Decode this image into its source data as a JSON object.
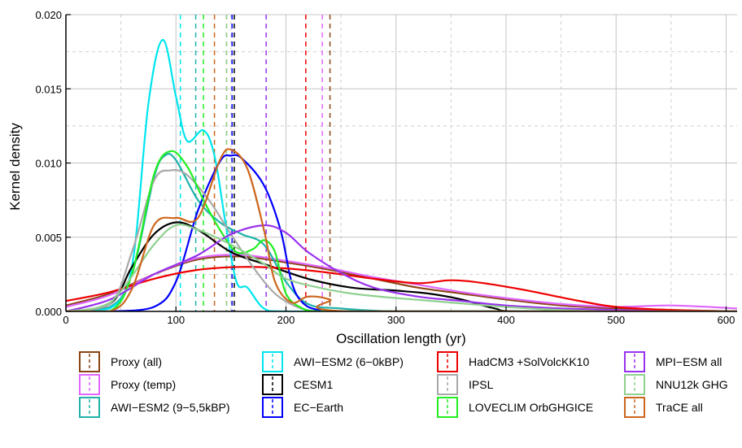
{
  "chart_data": {
    "type": "line",
    "title": "",
    "xlabel": "Oscillation length (yr)",
    "ylabel": "Kernel density",
    "xlim": [
      0,
      610
    ],
    "ylim": [
      0,
      0.02
    ],
    "x_ticks": [
      0,
      100,
      200,
      300,
      400,
      500,
      600
    ],
    "y_ticks": [
      0,
      0.005,
      0.01,
      0.015,
      0.02
    ],
    "x_tick_labels": [
      "0",
      "100",
      "200",
      "300",
      "400",
      "500",
      "600"
    ],
    "y_tick_labels": [
      "0.000",
      "0.005",
      "0.010",
      "0.015",
      "0.020"
    ],
    "grid": true,
    "legend_position": "bottom",
    "series": [
      {
        "name": "Proxy (all)",
        "color": "#8B4513",
        "mean": 240,
        "x": [
          0,
          40,
          80,
          120,
          160,
          200,
          240,
          280,
          320,
          360,
          400,
          450,
          500,
          550,
          610
        ],
        "values": [
          0.0004,
          0.0012,
          0.0025,
          0.0035,
          0.0037,
          0.0033,
          0.0028,
          0.0022,
          0.0016,
          0.0012,
          0.0008,
          0.0004,
          0.0002,
          0.0001,
          0.0
        ]
      },
      {
        "name": "Proxy (temp)",
        "color": "#E066FF",
        "mean": 233,
        "x": [
          0,
          40,
          80,
          120,
          160,
          200,
          240,
          280,
          320,
          360,
          400,
          450,
          500,
          550,
          610
        ],
        "values": [
          0.0003,
          0.0011,
          0.0025,
          0.0036,
          0.0038,
          0.0034,
          0.0029,
          0.0023,
          0.0018,
          0.0013,
          0.0009,
          0.0005,
          0.0003,
          0.0004,
          0.0002
        ]
      },
      {
        "name": "AWI−ESM2 (9−5,5kBP)",
        "color": "#20B2AA",
        "mean": 118,
        "x": [
          0,
          40,
          60,
          80,
          90,
          100,
          120,
          140,
          160,
          180,
          200,
          220,
          250,
          300,
          400,
          500,
          610
        ],
        "values": [
          0.0,
          0.0003,
          0.0025,
          0.009,
          0.0105,
          0.0102,
          0.0075,
          0.006,
          0.0052,
          0.0045,
          0.002,
          0.0005,
          0.0002,
          0.0,
          0.0,
          0.0,
          0.0
        ]
      },
      {
        "name": "AWI−ESM2 (6−0kBP)",
        "color": "#00E5EE",
        "mean": 104,
        "x": [
          0,
          40,
          60,
          75,
          88,
          100,
          110,
          125,
          135,
          145,
          155,
          165,
          180,
          200,
          300,
          610
        ],
        "values": [
          0.0,
          0.0002,
          0.003,
          0.014,
          0.0183,
          0.0145,
          0.0115,
          0.0122,
          0.0105,
          0.006,
          0.002,
          0.0016,
          0.0002,
          0.0,
          0.0,
          0.0
        ]
      },
      {
        "name": "CESM1",
        "color": "#000000",
        "mean": 153,
        "x": [
          0,
          40,
          60,
          80,
          100,
          120,
          150,
          180,
          220,
          260,
          300,
          330,
          360,
          390,
          420,
          610
        ],
        "values": [
          0.0,
          0.0005,
          0.003,
          0.0052,
          0.006,
          0.0055,
          0.004,
          0.0032,
          0.0022,
          0.0016,
          0.0014,
          0.0012,
          0.0008,
          0.0002,
          0.0,
          0.0
        ]
      },
      {
        "name": "EC−Earth",
        "color": "#0000FF",
        "mean": 151,
        "x": [
          0,
          40,
          80,
          100,
          120,
          140,
          150,
          160,
          180,
          195,
          205,
          215,
          230,
          260,
          610
        ],
        "values": [
          0.0,
          0.0,
          0.0003,
          0.002,
          0.0068,
          0.0101,
          0.0105,
          0.0103,
          0.0085,
          0.0055,
          0.002,
          0.0006,
          0.0001,
          0.0,
          0.0
        ]
      },
      {
        "name": "HadCM3 +SolVolcKK10",
        "color": "#EE0000",
        "mean": 218,
        "x": [
          0,
          40,
          80,
          120,
          160,
          200,
          240,
          280,
          320,
          350,
          380,
          420,
          460,
          500,
          550,
          610
        ],
        "values": [
          0.0007,
          0.0013,
          0.0022,
          0.0028,
          0.003,
          0.0029,
          0.0026,
          0.0022,
          0.0019,
          0.0021,
          0.0019,
          0.0014,
          0.0008,
          0.0003,
          0.0001,
          0.0
        ]
      },
      {
        "name": "IPSL",
        "color": "#A9A9A9",
        "mean": 146,
        "x": [
          0,
          40,
          60,
          80,
          95,
          110,
          130,
          150,
          170,
          190,
          210,
          230,
          260,
          300,
          610
        ],
        "values": [
          0.0,
          0.0005,
          0.004,
          0.0088,
          0.0095,
          0.0092,
          0.0075,
          0.0052,
          0.003,
          0.0012,
          0.0003,
          0.0,
          0.0,
          0.0,
          0.0
        ]
      },
      {
        "name": "LOVECLIM OrbGHGICE",
        "color": "#22EE22",
        "mean": 125,
        "x": [
          0,
          40,
          60,
          80,
          95,
          110,
          125,
          140,
          155,
          170,
          180,
          190,
          200,
          215,
          230,
          250,
          610
        ],
        "values": [
          0.0,
          0.0,
          0.0025,
          0.0092,
          0.0108,
          0.0098,
          0.0075,
          0.0055,
          0.004,
          0.0042,
          0.0048,
          0.004,
          0.0012,
          0.0002,
          0.0,
          0.0,
          0.0
        ]
      },
      {
        "name": "MPI−ESM all",
        "color": "#9932EE",
        "mean": 182,
        "x": [
          0,
          40,
          80,
          120,
          150,
          180,
          200,
          220,
          250,
          280,
          320,
          360,
          400,
          450,
          500,
          550,
          610
        ],
        "values": [
          0.0,
          0.0008,
          0.0025,
          0.0038,
          0.0052,
          0.0058,
          0.0053,
          0.004,
          0.0026,
          0.0016,
          0.001,
          0.0007,
          0.0004,
          0.0002,
          0.0001,
          0.0,
          0.0
        ]
      },
      {
        "name": "NNU12k GHG",
        "color": "#90D090",
        "mean": 146,
        "x": [
          0,
          40,
          80,
          100,
          120,
          150,
          180,
          200,
          230,
          260,
          300,
          350,
          400,
          450,
          500,
          610
        ],
        "values": [
          0.0,
          0.0006,
          0.0045,
          0.0058,
          0.0055,
          0.0045,
          0.0032,
          0.0022,
          0.0016,
          0.0012,
          0.0009,
          0.0006,
          0.0003,
          0.0001,
          0.0,
          0.0
        ]
      },
      {
        "name": "TraCE all",
        "color": "#CD661D",
        "mean": 135,
        "x": [
          0,
          40,
          60,
          80,
          100,
          120,
          140,
          150,
          165,
          180,
          190,
          205,
          220,
          240,
          260,
          610
        ],
        "values": [
          0.0,
          0.0,
          0.0015,
          0.0058,
          0.0063,
          0.0063,
          0.0102,
          0.0109,
          0.0096,
          0.0055,
          0.002,
          0.0006,
          0.001,
          0.0008,
          0.0,
          0.0
        ]
      }
    ]
  }
}
